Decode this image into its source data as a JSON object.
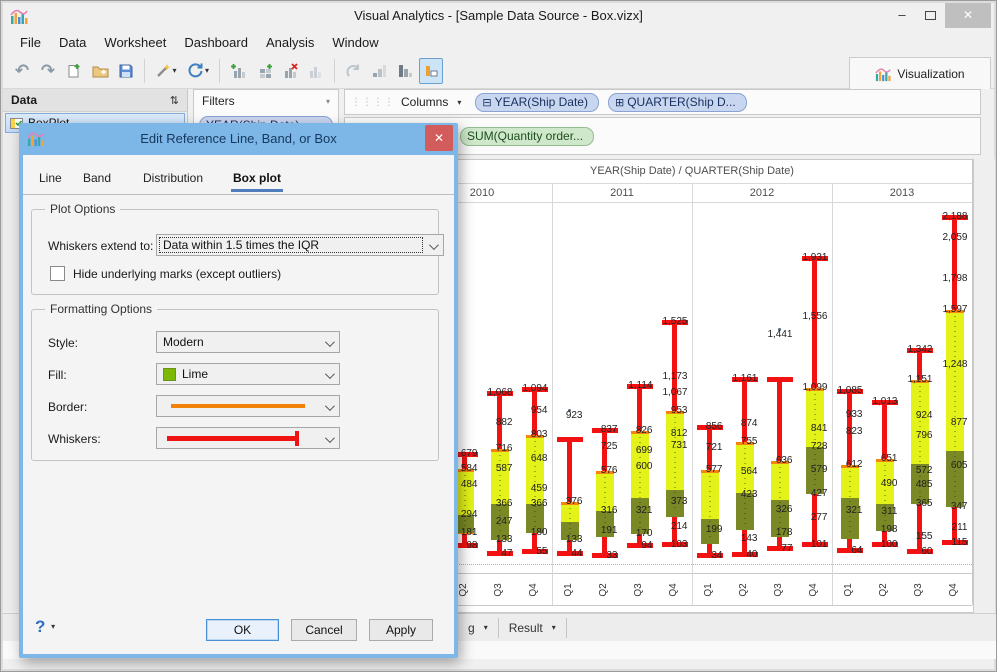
{
  "colors": {
    "dialog_chrome": "#7db7e7",
    "dialog_close": "#d25c5c",
    "tab_underline": "#4f7cba",
    "pill_blue": "#c9d6f0",
    "pill_green": "#cfe8cb",
    "box_fill": "#e3f218",
    "box_band": "#7b8826",
    "box_edge_orange": "#f8830d",
    "whisker_red": "#f21212"
  },
  "titlebar": {
    "title": "Visual Analytics - [Sample Data Source - Box.vizx]"
  },
  "menu": [
    "File",
    "Data",
    "Worksheet",
    "Dashboard",
    "Analysis",
    "Window"
  ],
  "toolbar": {
    "visualization": "Visualization"
  },
  "data_panel": {
    "header": "Data",
    "item": "BoxPlot"
  },
  "filters_panel": {
    "header": "Filters",
    "pill": "YEAR(Ship Date)"
  },
  "columns_shelf": {
    "label": "Columns",
    "pills": [
      "YEAR(Ship Date)",
      "QUARTER(Ship D..."
    ]
  },
  "rows_shelf": {
    "pill": "SUM(Quantity order..."
  },
  "footer": {
    "tab1": "g",
    "tab2": "Result"
  },
  "dialog": {
    "title": "Edit Reference Line, Band, or Box",
    "tabs": [
      "Line",
      "Band",
      "Distribution",
      "Box plot"
    ],
    "active_tab": "Box plot",
    "plot_options": {
      "legend": "Plot Options",
      "whiskers_label": "Whiskers extend to:",
      "whiskers_value": "Data within 1.5 times the IQR",
      "hide_marks_label": "Hide underlying marks (except outliers)",
      "hide_marks_checked": false
    },
    "formatting": {
      "legend": "Formatting Options",
      "style_label": "Style:",
      "style_value": "Modern",
      "fill_label": "Fill:",
      "fill_value": "Lime",
      "fill_swatch": "#7cb806",
      "border_label": "Border:",
      "border_color": "#f0820a",
      "whiskers_label": "Whiskers:",
      "whisker_color": "#ee1212"
    },
    "help": "?",
    "ok": "OK",
    "cancel": "Cancel",
    "apply": "Apply"
  },
  "chart_data": {
    "type": "box",
    "title": "YEAR(Ship Date) / QUARTER(Ship Date)",
    "legend_position": "none",
    "grid": "year columns with light dividers, dotted zero line",
    "ylim": [
      0,
      2300
    ],
    "years": [
      {
        "year": "2010",
        "boxes": [
          {
            "quarter": "Q2",
            "whisker_top": 679,
            "box_top": 584,
            "band_top": 294,
            "box_bottom": 175,
            "whisker_bottom": 98,
            "outlier": null,
            "labels": [
              "679",
              "584",
              "484",
              "294",
              "181",
              "98"
            ]
          },
          {
            "quarter": "Q3",
            "whisker_top": 1068,
            "box_top": 716,
            "band_top": 366,
            "box_bottom": 133,
            "whisker_bottom": 47,
            "outlier": null,
            "labels": [
              "1,068",
              "882",
              "716",
              "587",
              "366",
              "247",
              "133",
              "47"
            ]
          },
          {
            "quarter": "Q4",
            "whisker_top": 1094,
            "box_top": 803,
            "band_top": 366,
            "box_bottom": 180,
            "whisker_bottom": 55,
            "outlier": null,
            "labels": [
              "1,094",
              "954",
              "803",
              "648",
              "459",
              "366",
              "180",
              "55"
            ]
          }
        ]
      },
      {
        "year": "2011",
        "boxes": [
          {
            "quarter": "Q1",
            "whisker_top": 778,
            "box_top": 376,
            "band_top": 250,
            "box_bottom": 133,
            "whisker_bottom": 44,
            "outlier": 923,
            "labels": [
              "923",
              "376",
              "133",
              "44"
            ]
          },
          {
            "quarter": "Q2",
            "whisker_top": 837,
            "box_top": 576,
            "band_top": 316,
            "box_bottom": 155,
            "whisker_bottom": 33,
            "outlier": null,
            "labels": [
              "837",
              "725",
              "576",
              "316",
              "191",
              "33"
            ]
          },
          {
            "quarter": "Q3",
            "whisker_top": 1114,
            "box_top": 826,
            "band_top": 400,
            "box_bottom": 170,
            "whisker_bottom": 94,
            "outlier": null,
            "labels": [
              "1,114",
              "826",
              "699",
              "600",
              "321",
              "170",
              "94"
            ]
          },
          {
            "quarter": "Q4",
            "whisker_top": 1525,
            "box_top": 953,
            "band_top": 450,
            "box_bottom": 280,
            "whisker_bottom": 103,
            "outlier": null,
            "labels": [
              "1,525",
              "1,173",
              "1,067",
              "953",
              "812",
              "731",
              "373",
              "214",
              "103"
            ]
          }
        ]
      },
      {
        "year": "2012",
        "boxes": [
          {
            "quarter": "Q1",
            "whisker_top": 856,
            "box_top": 577,
            "band_top": 265,
            "box_bottom": 110,
            "whisker_bottom": 34,
            "outlier": null,
            "labels": [
              "856",
              "721",
              "577",
              "199",
              "34"
            ]
          },
          {
            "quarter": "Q2",
            "whisker_top": 1161,
            "box_top": 755,
            "band_top": 430,
            "box_bottom": 200,
            "whisker_bottom": 40,
            "outlier": null,
            "labels": [
              "1,161",
              "874",
              "755",
              "564",
              "423",
              "143",
              "40"
            ]
          },
          {
            "quarter": "Q3",
            "whisker_top": 1160,
            "box_top": 636,
            "band_top": 390,
            "box_bottom": 150,
            "whisker_bottom": 77,
            "outlier": 1441,
            "labels": [
              "1,441",
              "636",
              "326",
              "178",
              "77"
            ]
          },
          {
            "quarter": "Q4",
            "whisker_top": 1931,
            "box_top": 1099,
            "band_top": 728,
            "box_bottom": 427,
            "whisker_bottom": 101,
            "outlier": null,
            "labels": [
              "1,931",
              "1,556",
              "1,099",
              "841",
              "728",
              "579",
              "427",
              "277",
              "101"
            ]
          }
        ]
      },
      {
        "year": "2013",
        "boxes": [
          {
            "quarter": "Q1",
            "whisker_top": 1085,
            "box_top": 612,
            "band_top": 400,
            "box_bottom": 140,
            "whisker_bottom": 64,
            "outlier": null,
            "labels": [
              "1,085",
              "933",
              "823",
              "612",
              "321",
              "64"
            ]
          },
          {
            "quarter": "Q2",
            "whisker_top": 1013,
            "box_top": 651,
            "band_top": 360,
            "box_bottom": 190,
            "whisker_bottom": 100,
            "outlier": null,
            "labels": [
              "1,013",
              "651",
              "490",
              "311",
              "198",
              "100"
            ]
          },
          {
            "quarter": "Q3",
            "whisker_top": 1342,
            "box_top": 1151,
            "band_top": 620,
            "box_bottom": 365,
            "whisker_bottom": 60,
            "outlier": null,
            "labels": [
              "1,342",
              "1,151",
              "924",
              "796",
              "572",
              "485",
              "365",
              "155",
              "60"
            ]
          },
          {
            "quarter": "Q4",
            "whisker_top": 2188,
            "box_top": 1597,
            "band_top": 700,
            "box_bottom": 347,
            "whisker_bottom": 115,
            "outlier": null,
            "labels": [
              "2,188",
              "2,059",
              "1,798",
              "1,597",
              "1,248",
              "877",
              "605",
              "347",
              "211",
              "115"
            ]
          }
        ]
      }
    ]
  }
}
